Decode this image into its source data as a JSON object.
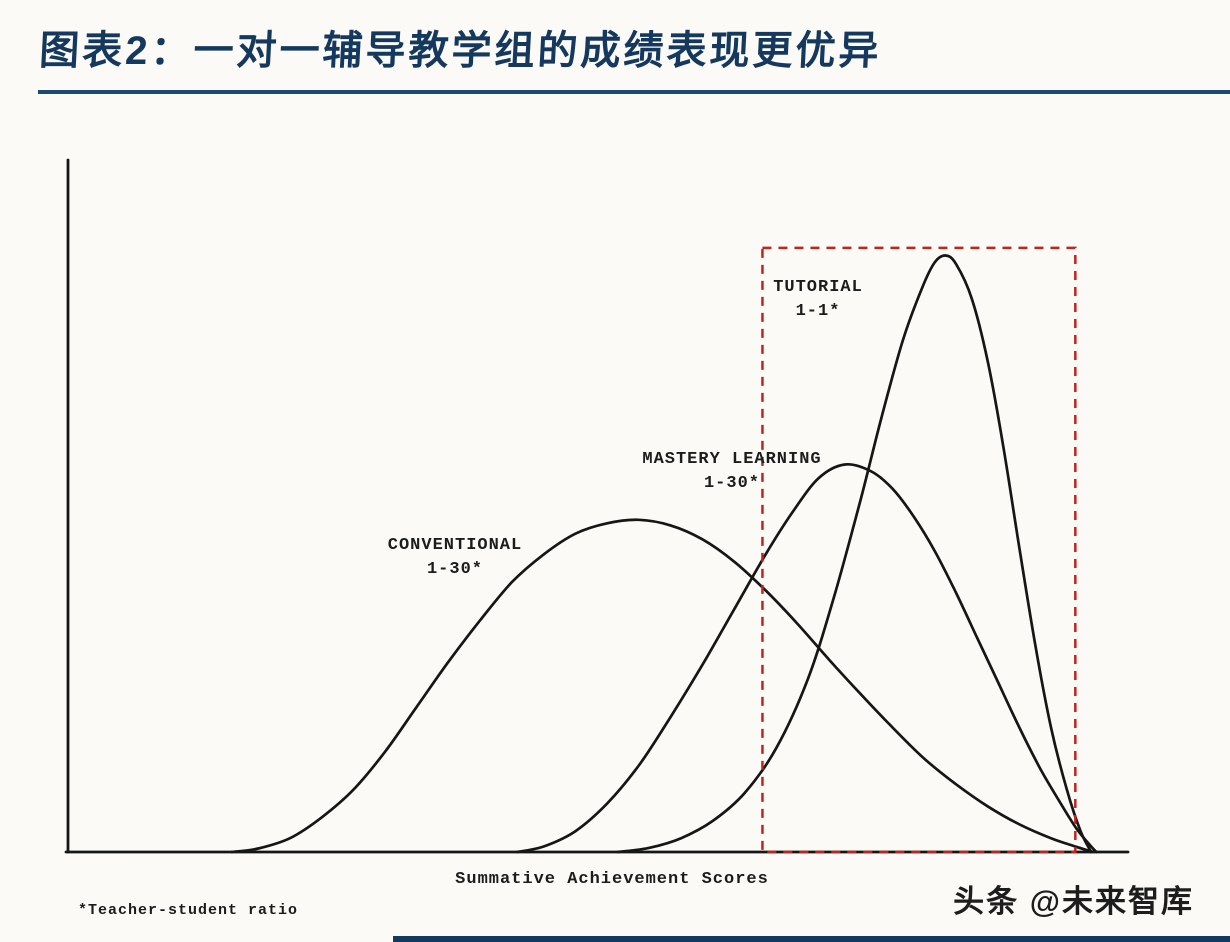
{
  "page": {
    "title": "图表2：一对一辅导教学组的成绩表现更优异",
    "footnote": "*Teacher-student ratio",
    "watermark": "头条 @未来智库",
    "accent_color": "#1a4a70",
    "curve_color": "#161616",
    "highlight_color": "#c0251c"
  },
  "chart_data": {
    "type": "line",
    "title": "",
    "xlabel": "Summative Achievement Scores",
    "ylabel": "",
    "x_range": [
      0,
      100
    ],
    "y_range": [
      0,
      1
    ],
    "grid": false,
    "legend_position": "inline-annotations",
    "series": [
      {
        "name": "CONVENTIONAL",
        "ratio_label": "1-30*",
        "points": [
          [
            15.5,
            0
          ],
          [
            18,
            0.005
          ],
          [
            21,
            0.02
          ],
          [
            24,
            0.05
          ],
          [
            27,
            0.09
          ],
          [
            30,
            0.145
          ],
          [
            33,
            0.21
          ],
          [
            36,
            0.275
          ],
          [
            39,
            0.335
          ],
          [
            42,
            0.39
          ],
          [
            45,
            0.43
          ],
          [
            48,
            0.46
          ],
          [
            51,
            0.475
          ],
          [
            54,
            0.48
          ],
          [
            57,
            0.472
          ],
          [
            60,
            0.452
          ],
          [
            63,
            0.42
          ],
          [
            66,
            0.378
          ],
          [
            69,
            0.33
          ],
          [
            72,
            0.278
          ],
          [
            75,
            0.228
          ],
          [
            78,
            0.18
          ],
          [
            81,
            0.135
          ],
          [
            84,
            0.098
          ],
          [
            87,
            0.066
          ],
          [
            90,
            0.04
          ],
          [
            93,
            0.02
          ],
          [
            95.5,
            0.007
          ],
          [
            97,
            0
          ]
        ]
      },
      {
        "name": "MASTERY LEARNING",
        "ratio_label": "1-30*",
        "points": [
          [
            42.5,
            0
          ],
          [
            45,
            0.008
          ],
          [
            48,
            0.03
          ],
          [
            51,
            0.07
          ],
          [
            54,
            0.125
          ],
          [
            57,
            0.195
          ],
          [
            60,
            0.27
          ],
          [
            63,
            0.35
          ],
          [
            66,
            0.43
          ],
          [
            68.5,
            0.49
          ],
          [
            71,
            0.54
          ],
          [
            73.5,
            0.56
          ],
          [
            76,
            0.55
          ],
          [
            78,
            0.525
          ],
          [
            80,
            0.485
          ],
          [
            82,
            0.435
          ],
          [
            84,
            0.375
          ],
          [
            86,
            0.31
          ],
          [
            88,
            0.245
          ],
          [
            90,
            0.18
          ],
          [
            92,
            0.12
          ],
          [
            94,
            0.068
          ],
          [
            95.5,
            0.032
          ],
          [
            96.8,
            0.008
          ],
          [
            97.3,
            0
          ]
        ]
      },
      {
        "name": "TUTORIAL",
        "ratio_label": "1-1*",
        "points": [
          [
            52,
            0
          ],
          [
            55,
            0.006
          ],
          [
            58,
            0.02
          ],
          [
            61,
            0.045
          ],
          [
            64,
            0.085
          ],
          [
            67,
            0.15
          ],
          [
            70,
            0.25
          ],
          [
            72.5,
            0.37
          ],
          [
            75,
            0.51
          ],
          [
            77,
            0.63
          ],
          [
            79,
            0.74
          ],
          [
            80.8,
            0.815
          ],
          [
            82,
            0.852
          ],
          [
            83,
            0.862
          ],
          [
            84,
            0.85
          ],
          [
            85.5,
            0.8
          ],
          [
            87,
            0.71
          ],
          [
            88.5,
            0.585
          ],
          [
            90,
            0.44
          ],
          [
            91.5,
            0.3
          ],
          [
            93,
            0.18
          ],
          [
            94.5,
            0.09
          ],
          [
            95.8,
            0.03
          ],
          [
            96.8,
            0
          ]
        ]
      }
    ],
    "highlight_box": {
      "x0": 65.7,
      "x1": 95.3,
      "y0": 0,
      "y1": 0.873,
      "style": "dashed",
      "color": "#c0251c"
    }
  }
}
